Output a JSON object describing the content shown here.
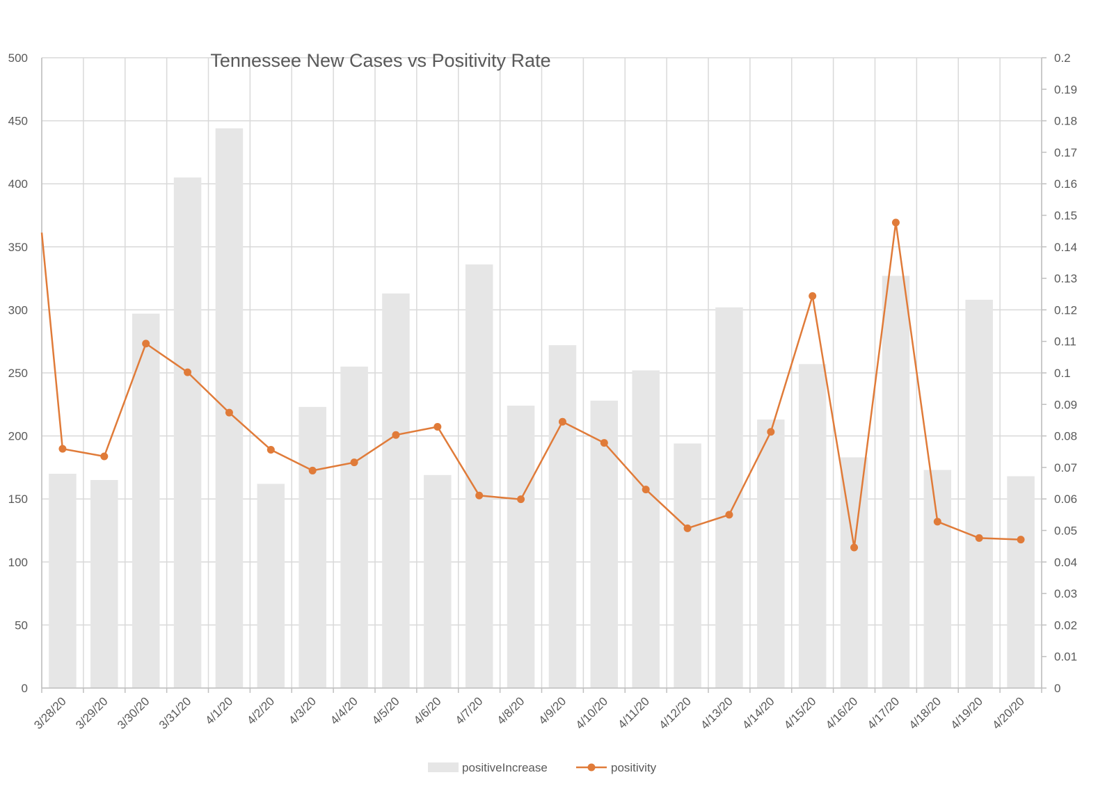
{
  "chart_data": {
    "type": "bar",
    "title": "Tennessee New Cases vs Positivity Rate",
    "categories": [
      "3/28/20",
      "3/29/20",
      "3/30/20",
      "3/31/20",
      "4/1/20",
      "4/2/20",
      "4/3/20",
      "4/4/20",
      "4/5/20",
      "4/6/20",
      "4/7/20",
      "4/8/20",
      "4/9/20",
      "4/10/20",
      "4/11/20",
      "4/12/20",
      "4/13/20",
      "4/14/20",
      "4/15/20",
      "4/16/20",
      "4/17/20",
      "4/18/20",
      "4/19/20",
      "4/20/20"
    ],
    "series": [
      {
        "name": "positiveIncrease",
        "type": "bar",
        "axis": "left",
        "color": "#e6e6e6",
        "values": [
          170,
          165,
          297,
          405,
          444,
          162,
          223,
          255,
          313,
          169,
          336,
          224,
          272,
          228,
          252,
          194,
          302,
          213,
          257,
          183,
          327,
          173,
          308,
          168
        ]
      },
      {
        "name": "positivity",
        "type": "line",
        "axis": "right",
        "color": "#e07b39",
        "values": [
          0.0759,
          0.0735,
          0.1093,
          0.1002,
          0.0874,
          0.0756,
          0.069,
          0.0716,
          0.0803,
          0.0829,
          0.0611,
          0.0599,
          0.0845,
          0.0778,
          0.063,
          0.0507,
          0.055,
          0.0813,
          0.1244,
          0.0446,
          0.1477,
          0.0528,
          0.0476,
          0.0471
        ]
      }
    ],
    "line_start_value": 0.1445,
    "y_left": {
      "lim": [
        0,
        500
      ],
      "ticks": [
        "0",
        "50",
        "100",
        "150",
        "200",
        "250",
        "300",
        "350",
        "400",
        "450",
        "500"
      ]
    },
    "y_right": {
      "lim": [
        0,
        0.2
      ],
      "ticks": [
        "0",
        "0.01",
        "0.02",
        "0.03",
        "0.04",
        "0.05",
        "0.06",
        "0.07",
        "0.08",
        "0.09",
        "0.1",
        "0.11",
        "0.12",
        "0.13",
        "0.14",
        "0.15",
        "0.16",
        "0.17",
        "0.18",
        "0.19",
        "0.2"
      ]
    },
    "grid": true,
    "legend_position": "bottom",
    "legend": [
      "positiveIncrease",
      "positivity"
    ]
  }
}
